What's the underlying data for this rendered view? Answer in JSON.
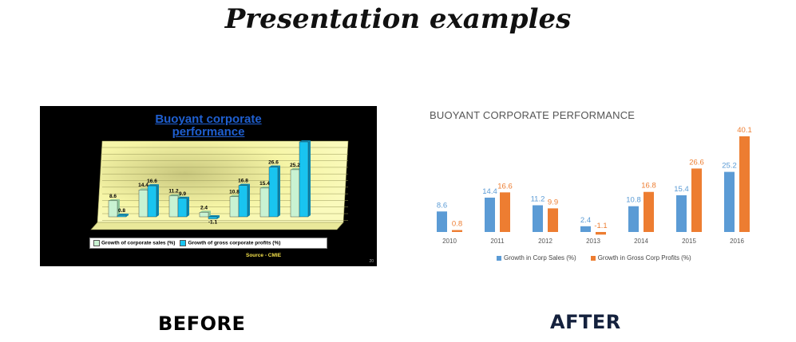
{
  "page": {
    "title": "Presentation examples",
    "before_label": "BEFORE",
    "after_label": "AFTER"
  },
  "before": {
    "title_line1": "Buoyant corporate",
    "title_line2": "performance",
    "legend_sales": "Growth of corporate sales (%)",
    "legend_profits": "Growth of gross corporate profits (%)",
    "source": "Source - CMIE",
    "page_number": "20"
  },
  "after": {
    "title": "BUOYANT CORPORATE PERFORMANCE",
    "legend_sales": "Growth in Corp Sales (%)",
    "legend_profits": "Growth in Gross Corp Profits (%)"
  },
  "colors": {
    "sales": "#5b9bd5",
    "profits": "#ed7d31",
    "before_sales": "#c9f2d2",
    "before_profits": "#19c4f0",
    "before_wall": "#f6f5a6"
  },
  "chart_data": [
    {
      "type": "bar",
      "title": "Buoyant corporate performance",
      "categories": [
        "",
        "",
        "",
        "",
        "",
        "",
        ""
      ],
      "series": [
        {
          "name": "Growth of corporate sales (%)",
          "values": [
            8.6,
            14.4,
            11.2,
            2.4,
            10.8,
            15.4,
            25.2
          ]
        },
        {
          "name": "Growth of gross corporate profits (%)",
          "values": [
            0.8,
            16.6,
            9.9,
            -1.1,
            16.8,
            26.6,
            40.1
          ]
        }
      ],
      "legend": "bottom",
      "grid": true
    },
    {
      "type": "bar",
      "title": "BUOYANT CORPORATE PERFORMANCE",
      "categories": [
        "2010",
        "2011",
        "2012",
        "2013",
        "2014",
        "2015",
        "2016"
      ],
      "series": [
        {
          "name": "Growth in Corp Sales (%)",
          "values": [
            8.6,
            14.4,
            11.2,
            2.4,
            10.8,
            15.4,
            25.2
          ]
        },
        {
          "name": "Growth in Gross Corp Profits (%)",
          "values": [
            0.8,
            16.6,
            9.9,
            -1.1,
            16.8,
            26.6,
            40.1
          ]
        }
      ],
      "legend": "bottom",
      "grid": false
    }
  ]
}
